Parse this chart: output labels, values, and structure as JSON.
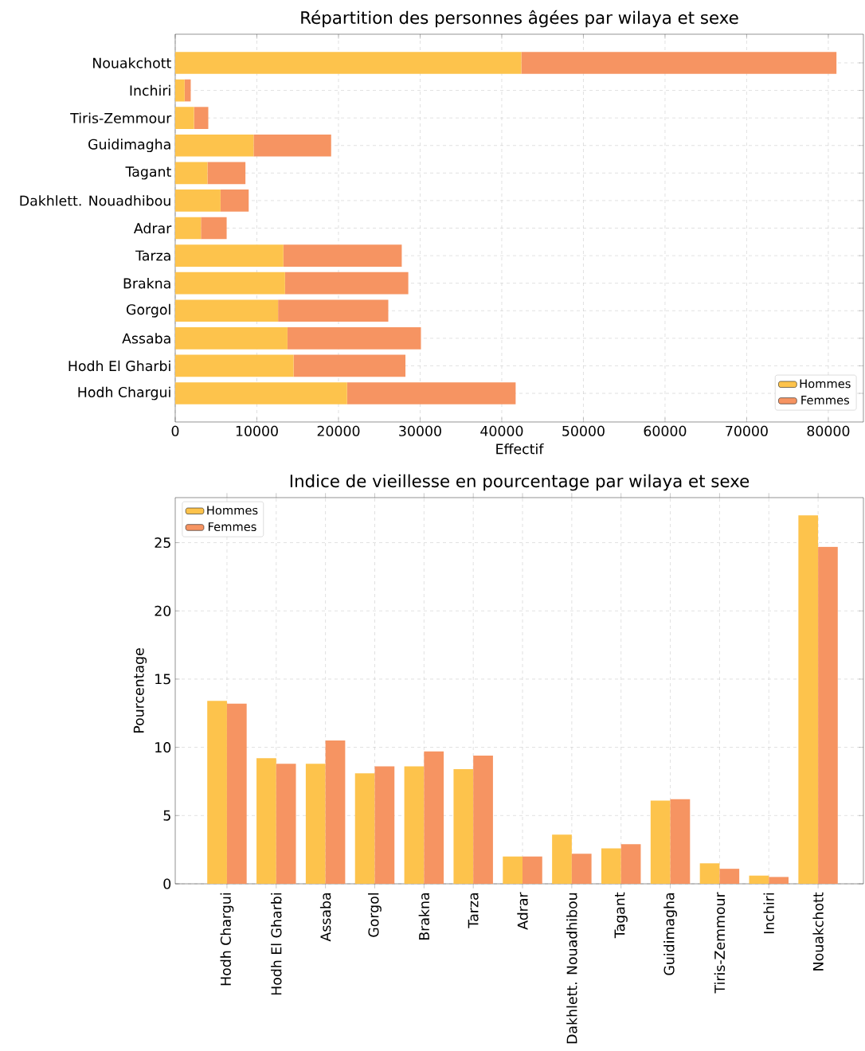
{
  "chart_data": [
    {
      "type": "bar",
      "orientation": "horizontal",
      "stacked": true,
      "title": "Répartition des personnes âgées par wilaya et sexe",
      "xlabel": "Effectif",
      "categories": [
        "Nouakchott",
        "Inchiri",
        "Tiris-Zemmour",
        "Guidimagha",
        "Tagant",
        "Dakhlett. Nouadhibou",
        "Adrar",
        "Tarza",
        "Brakna",
        "Gorgol",
        "Assaba",
        "Hodh El Gharbi",
        "Hodh Chargui"
      ],
      "series": [
        {
          "name": "Hommes",
          "color": "#fdc34c",
          "values": [
            42400,
            1150,
            2300,
            9600,
            3950,
            5550,
            3150,
            13250,
            13450,
            12600,
            13750,
            14500,
            21050
          ]
        },
        {
          "name": "Femmes",
          "color": "#f69462",
          "values": [
            38600,
            750,
            1750,
            9500,
            4650,
            3450,
            3150,
            14500,
            15100,
            13500,
            16350,
            13700,
            20650
          ]
        }
      ],
      "xlim": [
        0,
        84300
      ],
      "xticks": [
        0,
        10000,
        20000,
        30000,
        40000,
        50000,
        60000,
        70000,
        80000
      ],
      "grid": true,
      "legend": "bottom right"
    },
    {
      "type": "bar",
      "title": "Indice de vieillesse en pourcentage par wilaya et sexe",
      "ylabel": "Pourcentage",
      "categories": [
        "Hodh Chargui",
        "Hodh El Gharbi",
        "Assaba",
        "Gorgol",
        "Brakna",
        "Tarza",
        "Adrar",
        "Dakhlett. Nouadhibou",
        "Tagant",
        "Guidimagha",
        "Tiris-Zemmour",
        "Inchiri",
        "Nouakchott"
      ],
      "series": [
        {
          "name": "Hommes",
          "color": "#fdc34c",
          "values": [
            13.4,
            9.2,
            8.8,
            8.1,
            8.6,
            8.4,
            2.0,
            3.6,
            2.6,
            6.1,
            1.5,
            0.6,
            27.0
          ]
        },
        {
          "name": "Femmes",
          "color": "#f69462",
          "values": [
            13.2,
            8.8,
            10.5,
            8.6,
            9.7,
            9.4,
            2.0,
            2.2,
            2.9,
            6.2,
            1.1,
            0.5,
            24.7
          ]
        }
      ],
      "ylim": [
        0,
        28.3
      ],
      "yticks": [
        0,
        5,
        10,
        15,
        20,
        25
      ],
      "grid": true,
      "legend": "top left"
    }
  ]
}
